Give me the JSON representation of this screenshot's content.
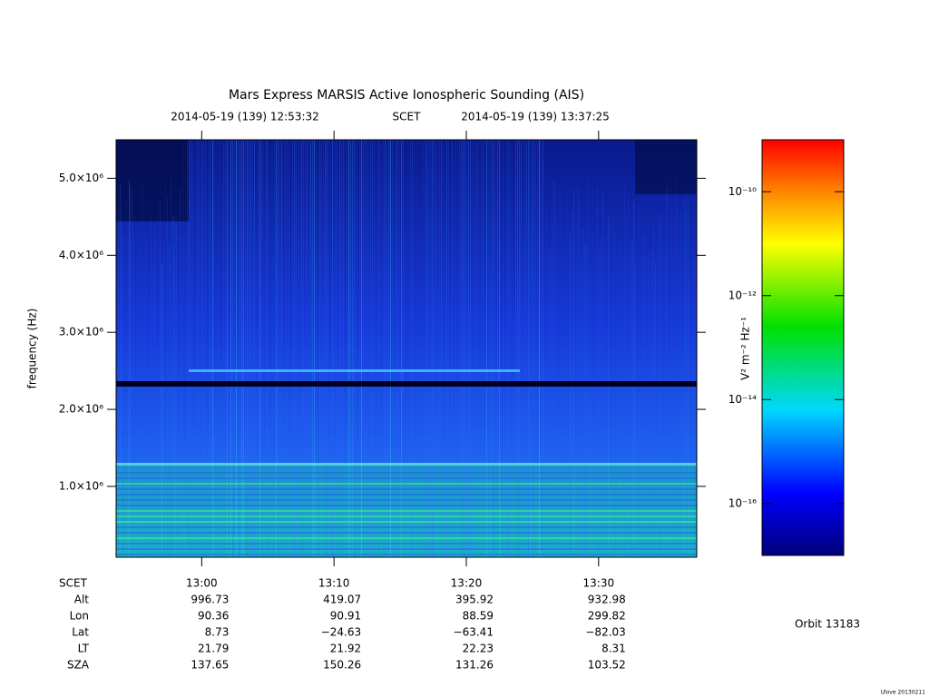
{
  "chart_data": {
    "type": "spectrogram",
    "title": "Mars Express MARSIS Active Ionospheric Sounding (AIS)",
    "time_start": "2014-05-19 (139) 12:53:32",
    "time_system": "SCET",
    "time_end": "2014-05-19 (139) 13:37:25",
    "y_label": "frequency (Hz)",
    "xlim": [
      773.53,
      817.42
    ],
    "xticks": [
      {
        "value": 780,
        "label": "13:00"
      },
      {
        "value": 790,
        "label": "13:10"
      },
      {
        "value": 800,
        "label": "13:20"
      },
      {
        "value": 810,
        "label": "13:30"
      }
    ],
    "ylim": [
      80000,
      5500000
    ],
    "yticks": [
      {
        "value": 1000000,
        "label": "1.0×10⁶"
      },
      {
        "value": 2000000,
        "label": "2.0×10⁶"
      },
      {
        "value": 3000000,
        "label": "3.0×10⁶"
      },
      {
        "value": 4000000,
        "label": "4.0×10⁶"
      },
      {
        "value": 5000000,
        "label": "5.0×10⁶"
      }
    ],
    "colorbar": {
      "label": "V² m⁻² Hz⁻¹",
      "log_scale": true,
      "clim": [
        1e-17,
        1e-09
      ],
      "ticks": [
        {
          "value": 1e-10,
          "label": "10⁻¹⁰"
        },
        {
          "value": 1e-12,
          "label": "10⁻¹²"
        },
        {
          "value": 1e-14,
          "label": "10⁻¹⁴"
        },
        {
          "value": 1e-16,
          "label": "10⁻¹⁶"
        }
      ]
    },
    "ephemeris": {
      "time_label": "SCET",
      "rows": [
        {
          "label": "Alt",
          "values": [
            "996.73",
            "419.07",
            "395.92",
            "932.98"
          ]
        },
        {
          "label": "Lon",
          "values": [
            "90.36",
            "90.91",
            "88.59",
            "299.82"
          ]
        },
        {
          "label": "Lat",
          "values": [
            "8.73",
            "−24.63",
            "−63.41",
            "−82.03"
          ]
        },
        {
          "label": "LT",
          "values": [
            "21.79",
            "21.92",
            "22.23",
            "8.31"
          ]
        },
        {
          "label": "SZA",
          "values": [
            "137.65",
            "150.26",
            "131.26",
            "103.52"
          ]
        }
      ]
    },
    "orbit": "Orbit 13183",
    "footer": "Ulove 20130211"
  }
}
